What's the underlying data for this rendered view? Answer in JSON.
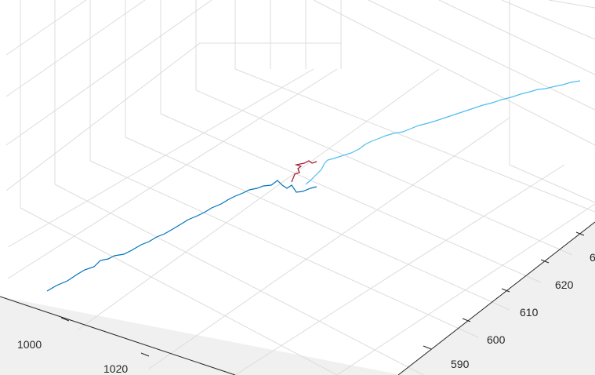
{
  "chart_data": {
    "type": "line",
    "title": "",
    "xlabel": "",
    "ylabel": "",
    "zlabel": "",
    "grid": true,
    "colors": {
      "floor": "#f0f0f0",
      "grid": "#dcdcdc",
      "axis": "#262626"
    },
    "x_tick_labels": [
      "1000",
      "1020"
    ],
    "y_tick_labels": [
      "590",
      "600",
      "610",
      "620",
      "6"
    ],
    "series": [
      {
        "color": "#0072bd"
      },
      {
        "color": "#4dbeee"
      },
      {
        "color": "#a2142f"
      }
    ]
  }
}
